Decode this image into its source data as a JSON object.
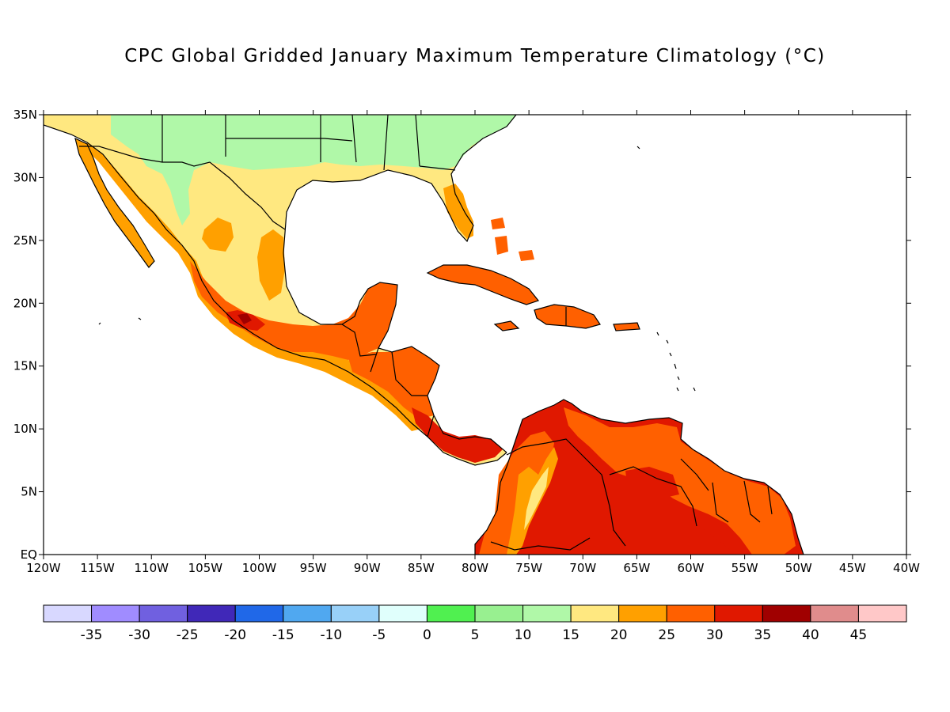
{
  "title": "CPC Global Gridded January Maximum Temperature Climatology (°C)",
  "map": {
    "lon_range": [
      -120,
      -40
    ],
    "lat_range": [
      0,
      35
    ],
    "x_ticks": [
      "120W",
      "115W",
      "110W",
      "105W",
      "100W",
      "95W",
      "90W",
      "85W",
      "80W",
      "75W",
      "70W",
      "65W",
      "60W",
      "55W",
      "50W",
      "45W",
      "40W"
    ],
    "y_ticks": [
      "EQ",
      "5N",
      "10N",
      "15N",
      "20N",
      "25N",
      "30N",
      "35N"
    ]
  },
  "colorbar": {
    "colors": [
      "#d8d8ff",
      "#a08cff",
      "#7060e0",
      "#4028b8",
      "#2068e8",
      "#50a8f0",
      "#98d0f8",
      "#e0fffc",
      "#50f050",
      "#98f090",
      "#b0f8a8",
      "#ffe880",
      "#ffa000",
      "#ff6000",
      "#e01800",
      "#a00000",
      "#e08c8c",
      "#ffc8c8"
    ],
    "labels": [
      "-35",
      "-30",
      "-25",
      "-20",
      "-15",
      "-10",
      "-5",
      "0",
      "5",
      "10",
      "15",
      "20",
      "25",
      "30",
      "35",
      "40",
      "45"
    ]
  },
  "legend_colors": {
    "band_10_15": "#b0f8a8",
    "band_15_20": "#ffe880",
    "band_20_25": "#ffa000",
    "band_25_30": "#ff6000",
    "band_30_35": "#e01800",
    "band_35_40": "#a00000"
  }
}
